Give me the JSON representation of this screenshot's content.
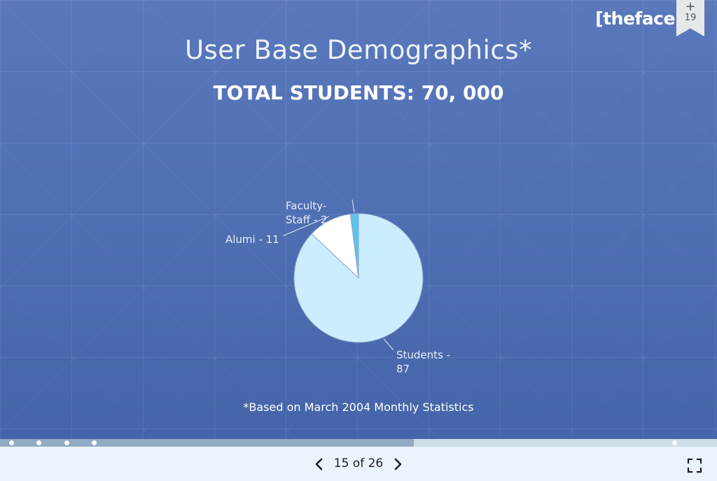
{
  "slide": {
    "title": "User Base Demographics*",
    "subtitle": "TOTAL STUDENTS: 70, 000",
    "brand": "[thefacebo",
    "footnote": "*Based on March 2004 Monthly Statistics"
  },
  "bookmark": {
    "icon": "plus-icon",
    "plus": "+",
    "count": "19"
  },
  "chart_data": {
    "type": "pie",
    "slices": [
      {
        "label": "Students - 87",
        "value": 87,
        "color": "#cbeeff"
      },
      {
        "label": "Alumi - 11",
        "value": 11,
        "color": "#ffffff"
      },
      {
        "label": "Faculty-Staff - 2",
        "value": 2,
        "color": "#5ec4ee"
      }
    ],
    "labels": {
      "students_line1": "Students -",
      "students_line2": "87",
      "alumni": "Alumi - 11",
      "faculty_line1": "Faculty-",
      "faculty_line2": "Staff - 2"
    }
  },
  "progress": {
    "fraction": 0.577,
    "colors": {
      "track": "#cfdde9",
      "fill": "#93aac3"
    }
  },
  "nav": {
    "prev_icon": "chevron-left-icon",
    "next_icon": "chevron-right-icon",
    "counter": "15 of 26",
    "fullscreen_icon": "fullscreen-icon"
  }
}
